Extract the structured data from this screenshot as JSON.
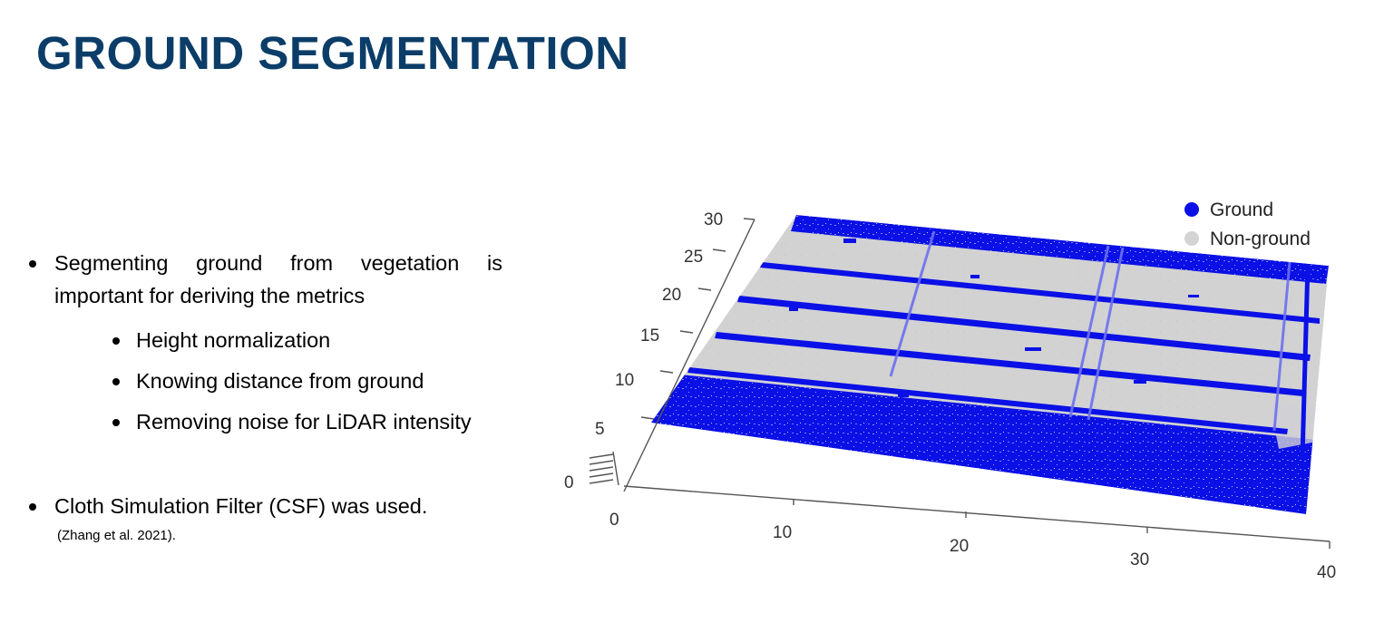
{
  "slide": {
    "title": "GROUND SEGMENTATION",
    "bullet_1_text": "Segmenting ground from vegetation is important for deriving the metrics",
    "sub_bullets": [
      "Height normalization",
      "Knowing distance from ground",
      "Removing noise for LiDAR intensity"
    ],
    "bullet_2_text": "Cloth Simulation Filter (CSF) was used.",
    "citation": "(Zhang et al. 2021)."
  },
  "chart_data": {
    "type": "scatter",
    "title": "",
    "legend": {
      "placement": "top-right",
      "entries": [
        {
          "label": "Ground",
          "color": "#0a10e6"
        },
        {
          "label": "Non-ground",
          "color": "#d4d4d4"
        }
      ]
    },
    "x_ticks": [
      "0",
      "10",
      "20",
      "30",
      "40"
    ],
    "y_ticks": [
      "0",
      "5",
      "10",
      "15",
      "20",
      "25",
      "30"
    ],
    "xlim": [
      0,
      40
    ],
    "ylim": [
      0,
      30
    ],
    "colors": {
      "ground": "#0a10e6",
      "non_ground": "#d4d4d4",
      "axis": "#444444"
    }
  }
}
